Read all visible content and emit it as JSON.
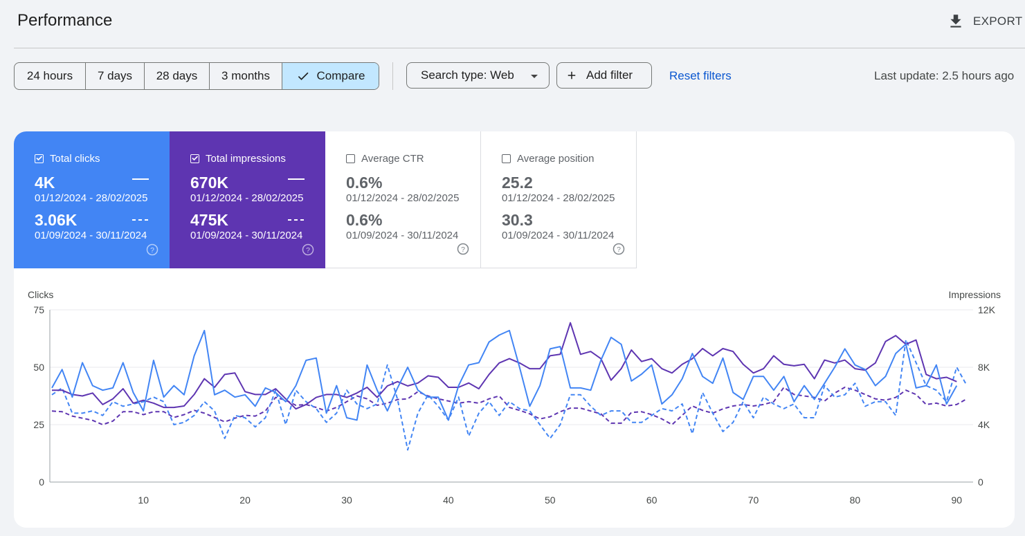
{
  "header": {
    "title": "Performance",
    "export_label": "EXPORT",
    "export_icon": "download-icon"
  },
  "toolbar": {
    "ranges": [
      {
        "label": "24 hours",
        "selected": false
      },
      {
        "label": "7 days",
        "selected": false
      },
      {
        "label": "28 days",
        "selected": false
      },
      {
        "label": "3 months",
        "selected": false
      },
      {
        "label": "Compare",
        "selected": true,
        "icon": "check-icon"
      }
    ],
    "search_type_label": "Search type: Web",
    "add_filter_label": "Add filter",
    "reset_filters_label": "Reset filters",
    "last_update": "Last update: 2.5 hours ago"
  },
  "colors": {
    "clicks": "#4285f4",
    "impressions": "#5e35b1",
    "link": "#0b57d0",
    "selected_chip": "#c2e7ff"
  },
  "metrics": [
    {
      "label": "Total clicks",
      "checked": true,
      "value": "4K",
      "range": "01/12/2024 - 28/02/2025",
      "compare_value": "3.06K",
      "compare_range": "01/09/2024 - 30/11/2024"
    },
    {
      "label": "Total impressions",
      "checked": true,
      "value": "670K",
      "range": "01/12/2024 - 28/02/2025",
      "compare_value": "475K",
      "compare_range": "01/09/2024 - 30/11/2024"
    },
    {
      "label": "Average CTR",
      "checked": false,
      "value": "0.6%",
      "range": "01/12/2024 - 28/02/2025",
      "compare_value": "0.6%",
      "compare_range": "01/09/2024 - 30/11/2024"
    },
    {
      "label": "Average position",
      "checked": false,
      "value": "25.2",
      "range": "01/12/2024 - 28/02/2025",
      "compare_value": "30.3",
      "compare_range": "01/09/2024 - 30/11/2024"
    }
  ],
  "chart_data": {
    "type": "line",
    "ylabel": "Clicks",
    "y2label": "Impressions",
    "ylim": [
      0,
      75
    ],
    "y2lim": [
      0,
      12000
    ],
    "yticks": [
      "0",
      "25",
      "50",
      "75"
    ],
    "y2ticks": [
      "0",
      "4K",
      "8K",
      "12K"
    ],
    "xlim": [
      1,
      91
    ],
    "xticks": [
      "10",
      "20",
      "30",
      "40",
      "50",
      "60",
      "70",
      "80",
      "90"
    ],
    "grid": true,
    "series": [
      {
        "metric": "clicks",
        "period": "current",
        "axis": "left",
        "dashed": false,
        "values": [
          41,
          49,
          37,
          52,
          42,
          40,
          41,
          52,
          39,
          31,
          53,
          37,
          42,
          38,
          55,
          66,
          38,
          40,
          37,
          38,
          33,
          41,
          39,
          35,
          42,
          53,
          54,
          30,
          42,
          28,
          27,
          51,
          40,
          31,
          41,
          50,
          40,
          37,
          37,
          27,
          42,
          51,
          52,
          61,
          64,
          66,
          50,
          33,
          42,
          58,
          59,
          41,
          41,
          40,
          53,
          63,
          60,
          44,
          47,
          51,
          34,
          38,
          45,
          56,
          46,
          43,
          54,
          39,
          36,
          46,
          46,
          40,
          46,
          35,
          42,
          36,
          43,
          50,
          58,
          51,
          49,
          42,
          46,
          56,
          60,
          41,
          42,
          51,
          34,
          42
        ]
      },
      {
        "metric": "impressions",
        "period": "current",
        "axis": "right",
        "dashed": false,
        "values": [
          6400,
          6400,
          6100,
          6000,
          6200,
          5400,
          5800,
          6500,
          5500,
          5700,
          5500,
          5200,
          5200,
          5300,
          6100,
          7200,
          6600,
          7500,
          7600,
          6300,
          6100,
          6100,
          6500,
          5800,
          5100,
          5400,
          5900,
          6100,
          6100,
          5900,
          6200,
          6600,
          5900,
          6700,
          7000,
          6700,
          6900,
          7400,
          7300,
          6600,
          6600,
          6900,
          6500,
          7500,
          8300,
          8600,
          8300,
          7900,
          7900,
          8800,
          8900,
          11100,
          8900,
          9100,
          8600,
          7100,
          7900,
          9200,
          8400,
          8600,
          7900,
          7600,
          8200,
          8600,
          9300,
          8800,
          9300,
          9100,
          8200,
          7600,
          7900,
          8800,
          8200,
          8100,
          8200,
          7200,
          8500,
          8300,
          8500,
          7900,
          7800,
          8300,
          9800,
          10200,
          9600,
          9900,
          7500,
          7200,
          7300,
          7000
        ]
      },
      {
        "metric": "clicks",
        "period": "previous",
        "axis": "left",
        "dashed": true,
        "values": [
          38,
          41,
          30,
          30,
          31,
          29,
          35,
          33,
          34,
          35,
          37,
          35,
          25,
          26,
          29,
          35,
          31,
          19,
          29,
          28,
          24,
          28,
          40,
          25,
          40,
          35,
          32,
          26,
          30,
          40,
          34,
          32,
          34,
          51,
          36,
          14,
          30,
          38,
          33,
          27,
          37,
          20,
          30,
          35,
          29,
          35,
          32,
          31,
          25,
          19,
          25,
          38,
          38,
          33,
          29,
          31,
          31,
          26,
          26,
          29,
          32,
          31,
          34,
          21,
          39,
          30,
          22,
          26,
          35,
          28,
          37,
          34,
          32,
          34,
          28,
          28,
          42,
          37,
          38,
          43,
          33,
          35,
          35,
          29,
          62,
          52,
          42,
          40,
          35,
          50,
          42
        ]
      },
      {
        "metric": "impressions",
        "period": "previous",
        "axis": "right",
        "dashed": true,
        "values": [
          4950,
          4900,
          4600,
          4450,
          4300,
          4000,
          4250,
          4900,
          4900,
          4700,
          4900,
          4900,
          4500,
          4700,
          5000,
          4800,
          4500,
          4200,
          4450,
          4650,
          4600,
          4950,
          5900,
          5700,
          5350,
          5400,
          5200,
          4950,
          5200,
          5600,
          6000,
          5800,
          5350,
          5500,
          5750,
          5800,
          6300,
          6000,
          5800,
          5650,
          5500,
          5600,
          5500,
          5800,
          6000,
          5200,
          5000,
          4750,
          4400,
          4550,
          4900,
          5150,
          5150,
          4950,
          4750,
          4100,
          4100,
          4850,
          4900,
          4700,
          4400,
          4000,
          4650,
          5300,
          5000,
          4800,
          5100,
          5300,
          5400,
          5300,
          5400,
          5600,
          6600,
          6100,
          6000,
          5900,
          5650,
          6200,
          6600,
          6400,
          6100,
          5800,
          5700,
          5900,
          6400,
          6100,
          5400,
          5500,
          5300,
          5400,
          5800
        ]
      }
    ]
  }
}
